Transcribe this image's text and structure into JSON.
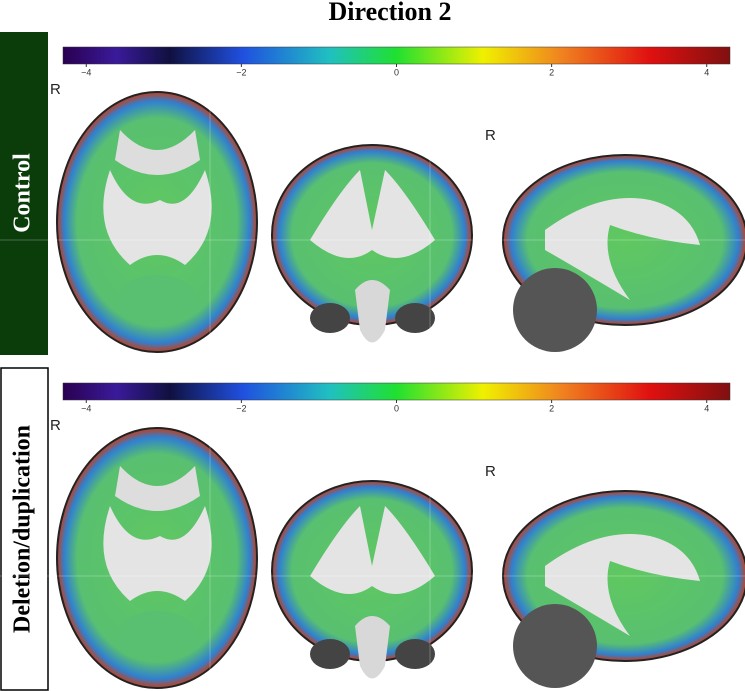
{
  "title": "Direction 2",
  "rows": [
    {
      "label": "Control",
      "orientation_labels": [
        "R",
        "R"
      ],
      "colorbar": {
        "lim": [
          -4.3,
          4.3
        ],
        "ticks": [
          {
            "value": -4,
            "label": "−4"
          },
          {
            "value": -2,
            "label": "−2"
          },
          0,
          2,
          4
        ]
      }
    },
    {
      "label": "Deletion/duplication",
      "orientation_labels": [
        "R",
        "R"
      ],
      "colorbar": {
        "lim": [
          -4.3,
          4.3
        ],
        "ticks": [
          {
            "value": -4,
            "label": "−4"
          },
          {
            "value": -2,
            "label": "−2"
          },
          0,
          2,
          4
        ]
      }
    }
  ]
}
